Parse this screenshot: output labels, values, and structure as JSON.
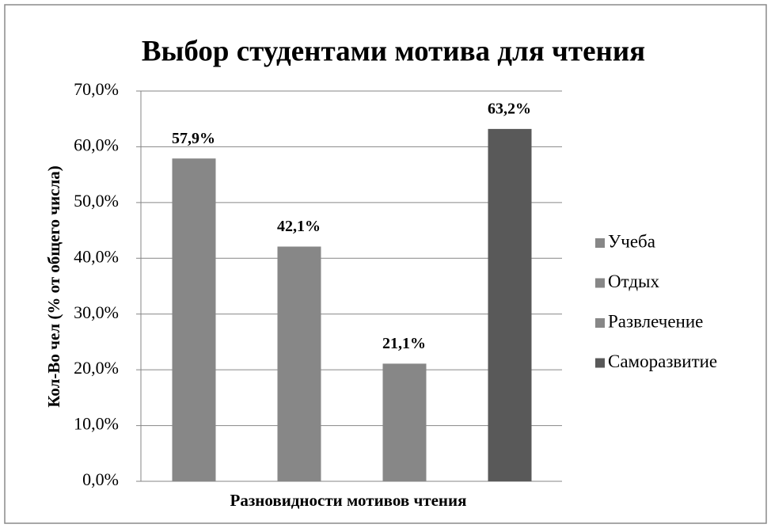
{
  "chart_data": {
    "type": "bar",
    "title": "Выбор студентами мотива для чтения",
    "y_label": "Кол-Во чел (% от общего числа)",
    "x_label": "Разновидности  мотивов чтения",
    "series": [
      {
        "name": "Учеба",
        "color": "#878787",
        "values": [
          57.9
        ],
        "value_labels": [
          "57,9%"
        ]
      },
      {
        "name": "Отдых",
        "color": "#878787",
        "values": [
          42.1
        ],
        "value_labels": [
          "42,1%"
        ]
      },
      {
        "name": "Развлечение",
        "color": "#878787",
        "values": [
          21.1
        ],
        "value_labels": [
          "21,1%"
        ]
      },
      {
        "name": "Саморазвитие",
        "color": "#595959",
        "values": [
          63.2
        ],
        "value_labels": [
          "63,2%"
        ]
      }
    ],
    "ylim": [
      0,
      70
    ],
    "yticks": [
      {
        "value": 0,
        "label": "0,0%"
      },
      {
        "value": 10,
        "label": "10,0%"
      },
      {
        "value": 20,
        "label": "20,0%"
      },
      {
        "value": 30,
        "label": "30,0%"
      },
      {
        "value": 40,
        "label": "40,0%"
      },
      {
        "value": 50,
        "label": "50,0%"
      },
      {
        "value": 60,
        "label": "60,0%"
      },
      {
        "value": 70,
        "label": "70,0%"
      }
    ],
    "grid": true,
    "legend": "right"
  }
}
